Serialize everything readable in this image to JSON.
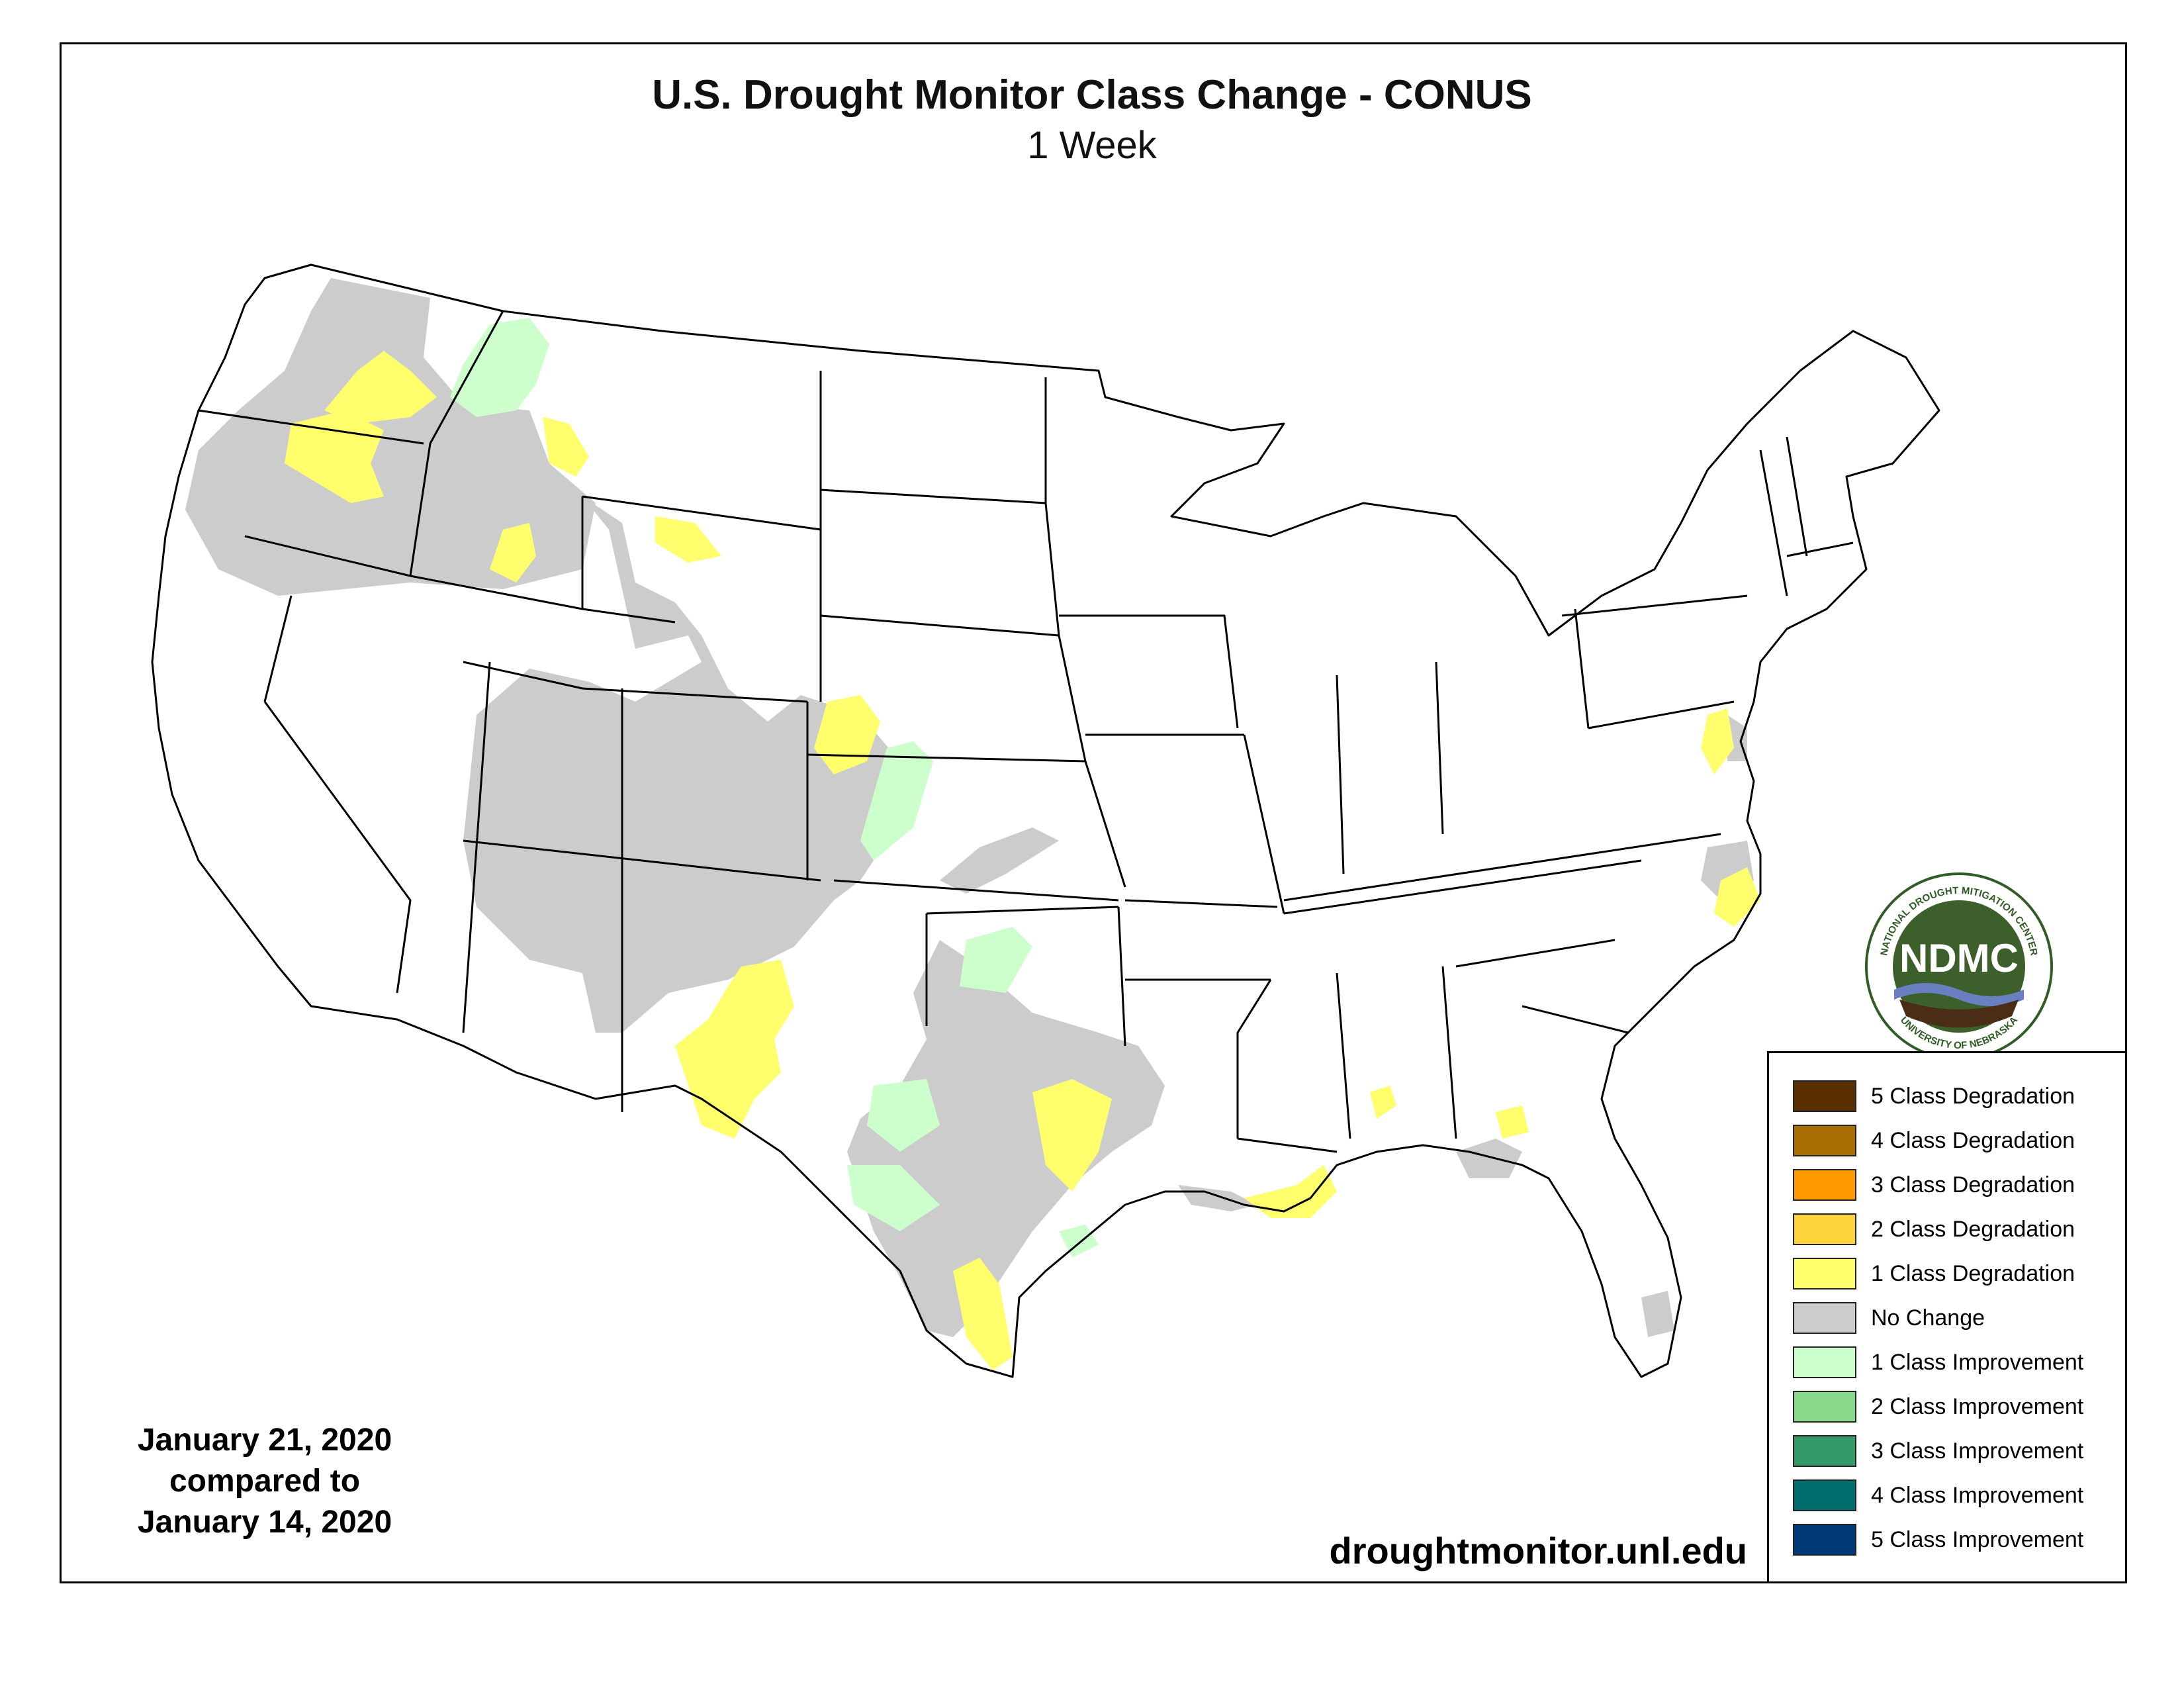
{
  "title": "U.S. Drought Monitor Class Change - CONUS",
  "subtitle": "1 Week",
  "dates": {
    "line1": "January 21, 2020",
    "line2": "compared to",
    "line3": "January 14, 2020"
  },
  "website": "droughtmonitor.unl.edu",
  "logo": {
    "text": "NDMC",
    "ring_top": "NATIONAL DROUGHT MITIGATION CENTER",
    "ring_bottom": "UNIVERSITY OF NEBRASKA"
  },
  "legend": [
    {
      "label": "5 Class Degradation",
      "color": "#5a3000"
    },
    {
      "label": "4 Class Degradation",
      "color": "#a86c00"
    },
    {
      "label": "3 Class Degradation",
      "color": "#ff9a00"
    },
    {
      "label": "2 Class Degradation",
      "color": "#ffd43a"
    },
    {
      "label": "1 Class Degradation",
      "color": "#ffff6e"
    },
    {
      "label": "No Change",
      "color": "#cccccc"
    },
    {
      "label": "1 Class Improvement",
      "color": "#ccffcc"
    },
    {
      "label": "2 Class Improvement",
      "color": "#88d98a"
    },
    {
      "label": "3 Class Improvement",
      "color": "#339966"
    },
    {
      "label": "4 Class Improvement",
      "color": "#006e6e"
    },
    {
      "label": "5 Class Improvement",
      "color": "#003a78"
    }
  ]
}
